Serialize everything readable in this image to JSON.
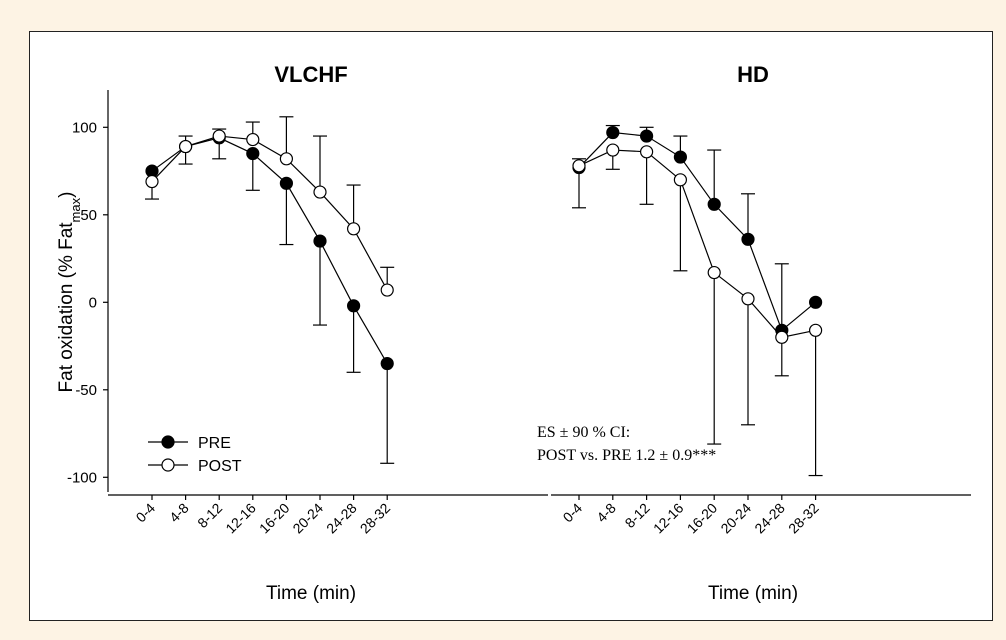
{
  "chart_data": {
    "type": "line",
    "ylabel_main": "Fat oxidation (% Fat",
    "ylabel_sub": "max",
    "ylabel_close": ")",
    "ylim": [
      -110,
      120
    ],
    "yticks": [
      100,
      50,
      0,
      -50,
      -100
    ],
    "yticklabels": [
      "100",
      "50",
      "0",
      "-50",
      "-100"
    ],
    "legend": {
      "position": "bottom-left",
      "entries": [
        "PRE",
        "POST"
      ]
    },
    "annotation": [
      "ES ± 90 % CI:",
      "POST vs. PRE 1.2 ± 0.9***"
    ],
    "panels": [
      {
        "title": "VLCHF",
        "xlabel": "Time (min)",
        "categories": [
          "0-4",
          "4-8",
          "8-12",
          "12-16",
          "16-20",
          "20-24",
          "24-28",
          "28-32"
        ],
        "series": [
          {
            "name": "PRE",
            "marker": "filled",
            "values": [
              75,
              89,
              94,
              85,
              68,
              35,
              -2,
              -35
            ],
            "err_lo": [
              null,
              79,
              82,
              64,
              33,
              -13,
              -40,
              -92
            ],
            "err_hi": [
              null,
              null,
              null,
              null,
              null,
              null,
              null,
              null
            ]
          },
          {
            "name": "POST",
            "marker": "open",
            "values": [
              69,
              89,
              95,
              93,
              82,
              63,
              42,
              7
            ],
            "err_lo": [
              59,
              null,
              null,
              null,
              null,
              null,
              null,
              null
            ],
            "err_hi": [
              null,
              95,
              99,
              103,
              106,
              95,
              67,
              20
            ]
          }
        ]
      },
      {
        "title": "HD",
        "xlabel": "Time (min)",
        "categories": [
          "0-4",
          "4-8",
          "8-12",
          "12-16",
          "16-20",
          "20-24",
          "24-28",
          "28-32"
        ],
        "series": [
          {
            "name": "PRE",
            "marker": "filled",
            "values": [
              77,
              97,
              95,
              83,
              56,
              36,
              -16,
              0
            ],
            "err_lo": [
              null,
              null,
              null,
              null,
              null,
              null,
              -42,
              null
            ],
            "err_hi": [
              null,
              101,
              100,
              95,
              87,
              62,
              null,
              null
            ]
          },
          {
            "name": "POST",
            "marker": "open",
            "values": [
              78,
              87,
              86,
              70,
              17,
              2,
              -20,
              -16
            ],
            "err_lo": [
              54,
              76,
              56,
              18,
              -81,
              -70,
              null,
              -99
            ],
            "err_hi": [
              82,
              null,
              null,
              null,
              null,
              null,
              22,
              null
            ]
          }
        ]
      }
    ]
  }
}
